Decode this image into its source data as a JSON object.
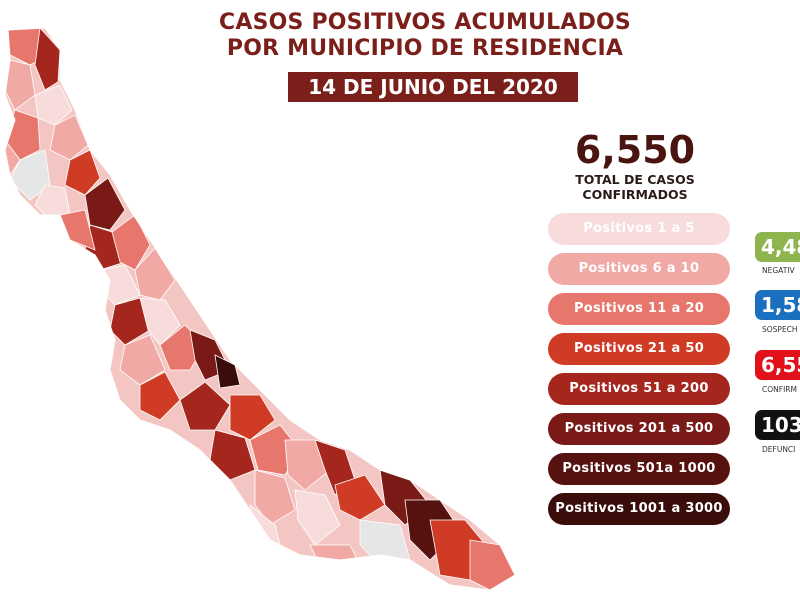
{
  "header": {
    "title_line1": "CASOS POSITIVOS ACUMULADOS",
    "title_line2": "POR MUNICIPIO DE RESIDENCIA",
    "date": "14 DE JUNIO DEL 2020"
  },
  "summary": {
    "total": "6,550",
    "total_label_line1": "TOTAL DE CASOS",
    "total_label_line2": "CONFIRMADOS"
  },
  "legend": [
    {
      "label": "Positivos 1 a 5",
      "color": "#f8dcdc"
    },
    {
      "label": "Positivos 6 a 10",
      "color": "#f0a9a4"
    },
    {
      "label": "Positivos 11 a 20",
      "color": "#e7776c"
    },
    {
      "label": "Positivos 21 a 50",
      "color": "#cf3b25"
    },
    {
      "label": "Positivos 51 a 200",
      "color": "#a4261d"
    },
    {
      "label": "Positivos 201 a 500",
      "color": "#7a1a17"
    },
    {
      "label": "Positivos 501a 1000",
      "color": "#56120f"
    },
    {
      "label": "Positivos 1001 a 3000",
      "color": "#3a0c0a"
    }
  ],
  "stats": [
    {
      "value": "4,48",
      "label": "NEGATIV",
      "color": "#8db44d"
    },
    {
      "value": "1,58",
      "label": "SOSPECH",
      "color": "#1a6fbf"
    },
    {
      "value": "6,55",
      "label": "CONFIRM",
      "color": "#e0111a"
    },
    {
      "value": "103",
      "label": "DEFUNCI",
      "color": "#111111"
    }
  ],
  "map": {
    "state_fill": "#f3c6c3",
    "border_color": "#ffffff",
    "unreported_color": "#e6e6e6"
  }
}
